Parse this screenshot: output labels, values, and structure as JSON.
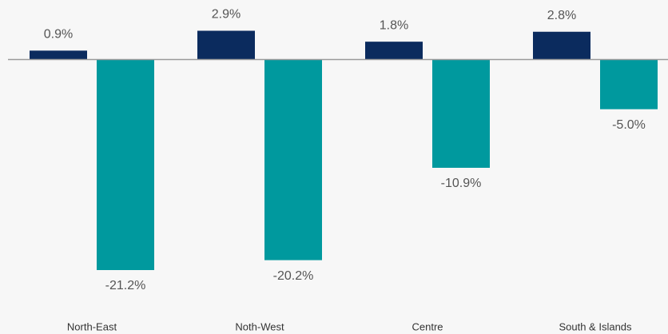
{
  "chart_data": {
    "type": "bar",
    "categories": [
      "North-East",
      "Noth-West",
      "Centre",
      "South & Islands"
    ],
    "series": [
      {
        "color": "#0b2b5e",
        "values": [
          0.9,
          2.9,
          1.8,
          2.8
        ],
        "value_labels": [
          "0.9%",
          "2.9%",
          "1.8%",
          "2.8%"
        ]
      },
      {
        "color": "#00999e",
        "values": [
          -21.2,
          -20.2,
          -10.9,
          -5.0
        ],
        "value_labels": [
          "-21.2%",
          "-20.2%",
          "-10.9%",
          "-5.0%"
        ]
      }
    ]
  }
}
